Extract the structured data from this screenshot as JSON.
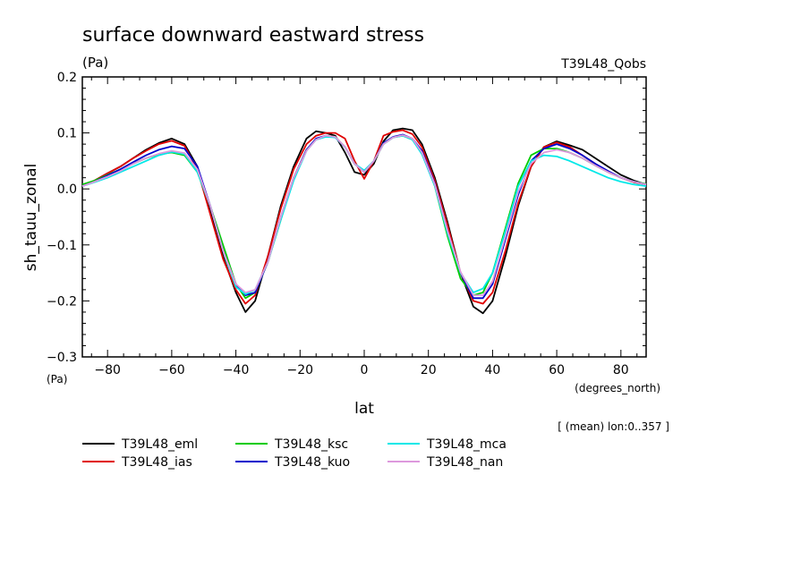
{
  "header": {
    "title": "surface downward eastward stress",
    "units": "(Pa)",
    "run_label": "T39L48_Qobs"
  },
  "footer": {
    "yunit_small": "(Pa)",
    "xunit_small": "(degrees_north)",
    "mean_note": "[ (mean) lon:0..357 ]"
  },
  "chart_data": {
    "type": "line",
    "title": "surface downward eastward stress",
    "xlabel": "lat",
    "ylabel": "sh_tauu_zonal",
    "xlim": [
      -87.86,
      87.86
    ],
    "ylim": [
      -0.3,
      0.2
    ],
    "xticks": [
      -80,
      -60,
      -40,
      -20,
      0,
      20,
      40,
      60,
      80
    ],
    "yticks": [
      -0.3,
      -0.2,
      -0.1,
      0.0,
      0.1,
      0.2
    ],
    "ytick_labels": [
      "−0.3",
      "−0.2",
      "−0.1",
      "0.0",
      "0.1",
      "0.2"
    ],
    "xtick_labels": [
      "−80",
      "−60",
      "−40",
      "−20",
      "0",
      "20",
      "40",
      "60",
      "80"
    ],
    "legend_position": "bottom",
    "grid": false,
    "x": [
      -87.86,
      -84,
      -80,
      -76,
      -72,
      -68,
      -64,
      -60,
      -56,
      -52,
      -48,
      -44,
      -40,
      -37,
      -34,
      -30,
      -26,
      -22,
      -18,
      -15,
      -12,
      -9,
      -6,
      -3,
      0,
      3,
      6,
      9,
      12,
      15,
      18,
      22,
      26,
      30,
      34,
      37,
      40,
      44,
      48,
      52,
      56,
      60,
      64,
      68,
      72,
      76,
      80,
      84,
      87.86
    ],
    "series": [
      {
        "name": "T39L48_eml",
        "color": "#000000",
        "values": [
          0.005,
          0.015,
          0.028,
          0.04,
          0.055,
          0.07,
          0.082,
          0.09,
          0.08,
          0.04,
          -0.04,
          -0.12,
          -0.185,
          -0.22,
          -0.2,
          -0.12,
          -0.03,
          0.04,
          0.09,
          0.103,
          0.1,
          0.095,
          0.065,
          0.03,
          0.025,
          0.045,
          0.085,
          0.105,
          0.108,
          0.105,
          0.08,
          0.02,
          -0.06,
          -0.15,
          -0.21,
          -0.222,
          -0.2,
          -0.12,
          -0.03,
          0.04,
          0.075,
          0.085,
          0.078,
          0.07,
          0.055,
          0.04,
          0.025,
          0.015,
          0.008
        ]
      },
      {
        "name": "T39L48_ias",
        "color": "#e00000",
        "values": [
          0.005,
          0.015,
          0.028,
          0.04,
          0.055,
          0.068,
          0.08,
          0.086,
          0.077,
          0.035,
          -0.045,
          -0.125,
          -0.18,
          -0.205,
          -0.19,
          -0.12,
          -0.035,
          0.035,
          0.08,
          0.095,
          0.1,
          0.1,
          0.09,
          0.05,
          0.018,
          0.05,
          0.095,
          0.102,
          0.105,
          0.098,
          0.075,
          0.015,
          -0.065,
          -0.15,
          -0.2,
          -0.205,
          -0.185,
          -0.11,
          -0.025,
          0.04,
          0.075,
          0.083,
          0.075,
          0.06,
          0.045,
          0.03,
          0.02,
          0.012,
          0.008
        ]
      },
      {
        "name": "T39L48_ksc",
        "color": "#00cc00",
        "values": [
          0.008,
          0.015,
          0.025,
          0.035,
          0.045,
          0.055,
          0.062,
          0.065,
          0.06,
          0.03,
          -0.03,
          -0.1,
          -0.17,
          -0.195,
          -0.185,
          -0.13,
          -0.055,
          0.02,
          0.07,
          0.088,
          0.095,
          0.093,
          0.075,
          0.045,
          0.03,
          0.05,
          0.08,
          0.092,
          0.095,
          0.088,
          0.065,
          0.005,
          -0.085,
          -0.16,
          -0.19,
          -0.185,
          -0.15,
          -0.07,
          0.01,
          0.06,
          0.072,
          0.072,
          0.065,
          0.055,
          0.042,
          0.03,
          0.02,
          0.013,
          0.009
        ]
      },
      {
        "name": "T39L48_kuo",
        "color": "#0000cc",
        "values": [
          0.005,
          0.013,
          0.024,
          0.035,
          0.048,
          0.06,
          0.07,
          0.076,
          0.072,
          0.04,
          -0.03,
          -0.11,
          -0.17,
          -0.19,
          -0.185,
          -0.13,
          -0.05,
          0.02,
          0.07,
          0.09,
          0.095,
          0.092,
          0.075,
          0.045,
          0.03,
          0.05,
          0.082,
          0.093,
          0.097,
          0.09,
          0.068,
          0.01,
          -0.075,
          -0.15,
          -0.195,
          -0.195,
          -0.17,
          -0.09,
          -0.01,
          0.05,
          0.072,
          0.08,
          0.072,
          0.06,
          0.045,
          0.032,
          0.02,
          0.013,
          0.008
        ]
      },
      {
        "name": "T39L48_mca",
        "color": "#00e8e8",
        "values": [
          0.005,
          0.012,
          0.02,
          0.03,
          0.04,
          0.05,
          0.06,
          0.066,
          0.062,
          0.03,
          -0.03,
          -0.11,
          -0.175,
          -0.188,
          -0.18,
          -0.13,
          -0.055,
          0.015,
          0.068,
          0.088,
          0.093,
          0.092,
          0.075,
          0.045,
          0.033,
          0.05,
          0.08,
          0.092,
          0.095,
          0.088,
          0.062,
          0.005,
          -0.08,
          -0.15,
          -0.185,
          -0.178,
          -0.15,
          -0.075,
          0.005,
          0.05,
          0.06,
          0.058,
          0.05,
          0.04,
          0.03,
          0.02,
          0.013,
          0.008,
          0.005
        ]
      },
      {
        "name": "T39L48_nan",
        "color": "#dd99dd",
        "values": [
          0.005,
          0.013,
          0.022,
          0.032,
          0.045,
          0.055,
          0.063,
          0.068,
          0.064,
          0.035,
          -0.03,
          -0.11,
          -0.17,
          -0.185,
          -0.18,
          -0.13,
          -0.05,
          0.02,
          0.068,
          0.088,
          0.095,
          0.093,
          0.075,
          0.045,
          0.03,
          0.05,
          0.08,
          0.092,
          0.096,
          0.09,
          0.065,
          0.008,
          -0.075,
          -0.148,
          -0.19,
          -0.19,
          -0.165,
          -0.085,
          -0.005,
          0.045,
          0.065,
          0.07,
          0.065,
          0.055,
          0.042,
          0.03,
          0.02,
          0.013,
          0.008
        ]
      }
    ]
  }
}
